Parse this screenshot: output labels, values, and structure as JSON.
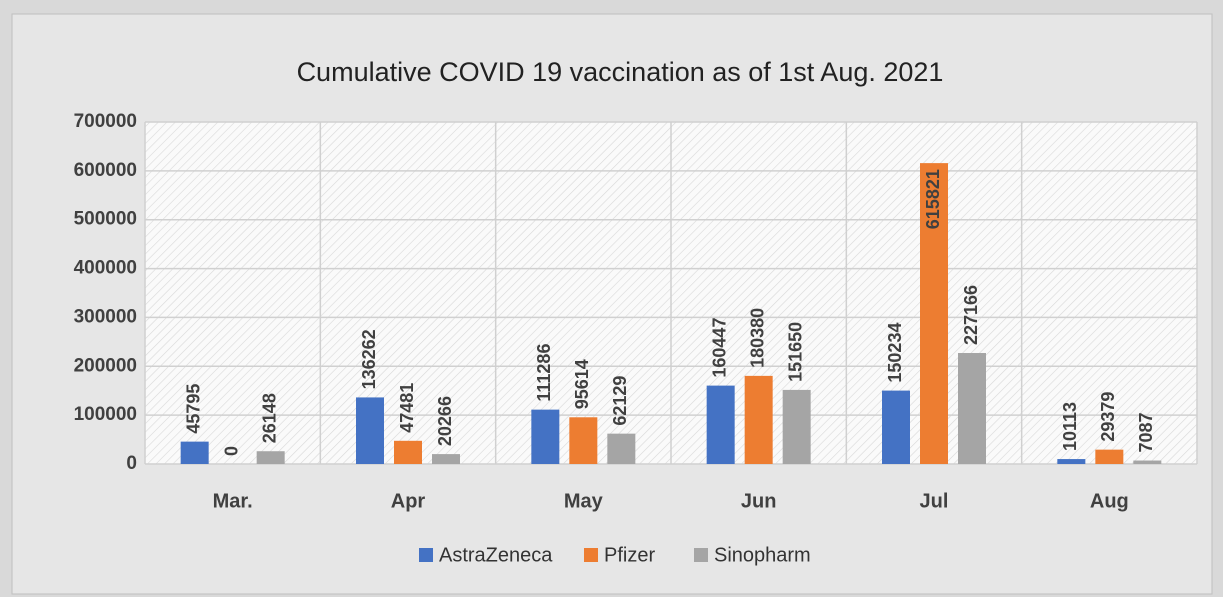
{
  "chart_data": {
    "type": "bar",
    "title": "Cumulative COVID 19 vaccination as of 1st Aug. 2021",
    "categories": [
      "Mar.",
      "Apr",
      "May",
      "Jun",
      "Jul",
      "Aug"
    ],
    "series": [
      {
        "name": "AstraZeneca",
        "color": "#4472c4",
        "values": [
          45795,
          136262,
          111286,
          160447,
          150234,
          10113
        ]
      },
      {
        "name": "Pfizer",
        "color": "#ed7d31",
        "values": [
          0,
          47481,
          95614,
          180380,
          615821,
          29379
        ]
      },
      {
        "name": "Sinopharm",
        "color": "#a5a5a5",
        "values": [
          26148,
          20266,
          62129,
          151650,
          227166,
          7087
        ]
      }
    ],
    "ylim": [
      0,
      700000
    ],
    "yticks": [
      0,
      100000,
      200000,
      300000,
      400000,
      500000,
      600000,
      700000
    ],
    "grid": true,
    "legend": "bottom"
  }
}
